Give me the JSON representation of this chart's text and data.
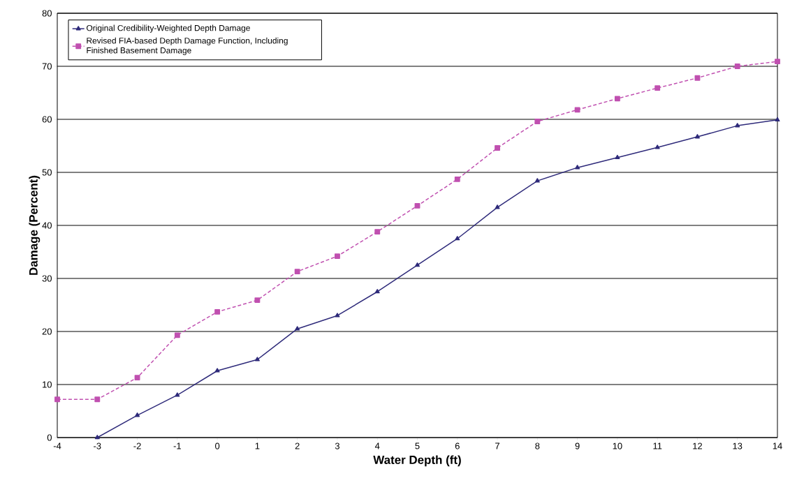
{
  "chart_data": {
    "type": "line",
    "xlabel": "Water Depth (ft)",
    "ylabel": "Damage (Percent)",
    "xlim": [
      -4,
      14
    ],
    "ylim": [
      0,
      80
    ],
    "xticks": [
      -4,
      -3,
      -2,
      -1,
      0,
      1,
      2,
      3,
      4,
      5,
      6,
      7,
      8,
      9,
      10,
      11,
      12,
      13,
      14
    ],
    "yticks": [
      0,
      10,
      20,
      30,
      40,
      50,
      60,
      70,
      80
    ],
    "grid": "y",
    "legend": "top left",
    "series": [
      {
        "name": "Original Credibility-Weighted Depth Damage",
        "color": "#2e2a7a",
        "marker": "triangle",
        "line_style": "solid",
        "x": [
          -3,
          -2,
          -1,
          0,
          1,
          2,
          3,
          4,
          5,
          6,
          7,
          8,
          9,
          10,
          11,
          12,
          13,
          14
        ],
        "values": [
          0,
          4.2,
          8.0,
          12.6,
          14.7,
          20.5,
          23.0,
          27.5,
          32.5,
          37.5,
          43.4,
          48.4,
          50.9,
          52.8,
          54.7,
          56.7,
          58.8,
          59.9
        ]
      },
      {
        "name": "Revised FIA-based Depth Damage Function, Including Finished Basement Damage",
        "color": "#c050b0",
        "marker": "square",
        "line_style": "dashed",
        "x": [
          -4,
          -3,
          -2,
          -1,
          0,
          1,
          2,
          3,
          4,
          5,
          6,
          7,
          8,
          9,
          10,
          11,
          12,
          13,
          14
        ],
        "values": [
          7.2,
          7.2,
          11.3,
          19.3,
          23.7,
          25.9,
          31.3,
          34.2,
          38.8,
          43.7,
          48.7,
          54.6,
          59.6,
          61.8,
          63.9,
          65.9,
          67.8,
          70.0,
          70.9
        ]
      }
    ]
  }
}
